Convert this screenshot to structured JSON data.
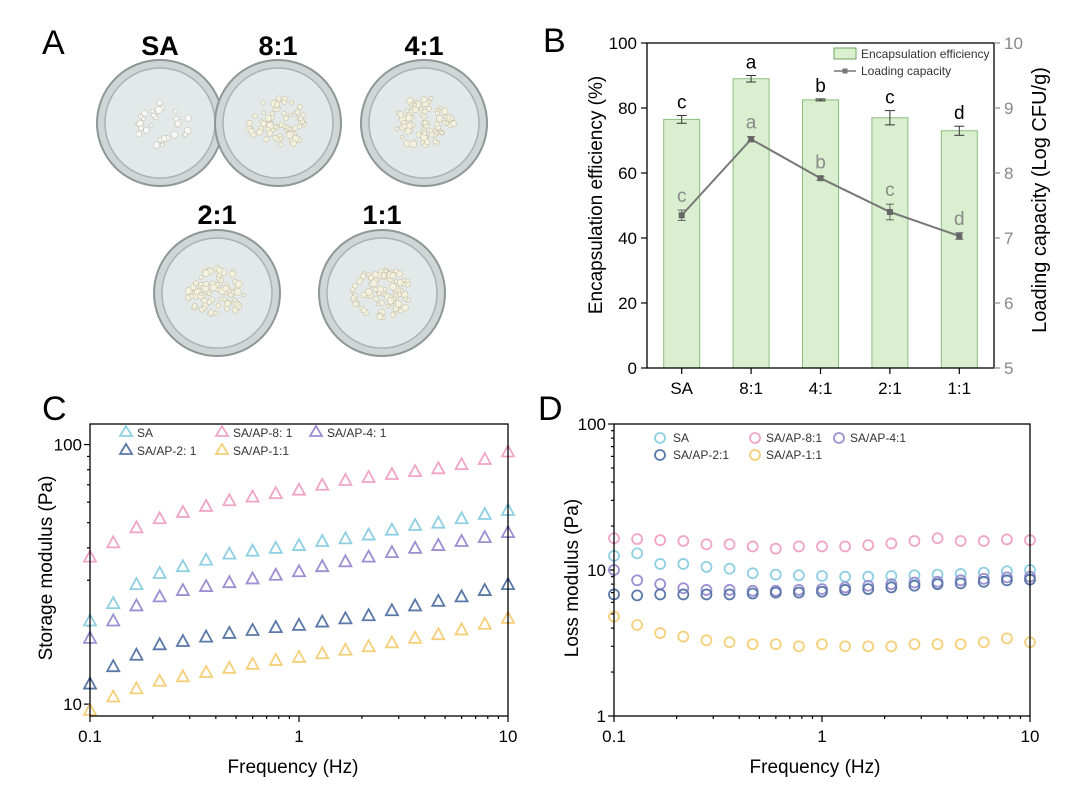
{
  "panels": {
    "A": {
      "letter": "A",
      "dishes": [
        {
          "label": "SA",
          "density": 0.35
        },
        {
          "label": "8:1",
          "density": 0.75
        },
        {
          "label": "4:1",
          "density": 0.9
        },
        {
          "label": "2:1",
          "density": 0.85
        },
        {
          "label": "1:1",
          "density": 0.95
        }
      ]
    }
  },
  "chart_data": [
    {
      "id": "B",
      "letter": "B",
      "type": "bar",
      "categories": [
        "SA",
        "8:1",
        "4:1",
        "2:1",
        "1:1"
      ],
      "series": [
        {
          "name": "Encapsulation efficiency",
          "axis": "left",
          "kind": "bar",
          "values": [
            76.5,
            89,
            82.5,
            77,
            73
          ],
          "errors": [
            1.2,
            1.0,
            0.3,
            2.2,
            1.4
          ],
          "letters": [
            "c",
            "a",
            "b",
            "c",
            "d"
          ],
          "color": "#d9efcf",
          "edge": "#8bbf7d"
        },
        {
          "name": "Loading capacity",
          "axis": "right",
          "kind": "line",
          "values": [
            7.35,
            8.52,
            7.92,
            7.4,
            7.03
          ],
          "errors": [
            0.08,
            0.04,
            0.03,
            0.12,
            0.05
          ],
          "letters": [
            "c",
            "a",
            "b",
            "c",
            "d"
          ],
          "color": "#777777"
        }
      ],
      "ylabel": "Encapsulation efficiency (%)",
      "y2label": "Loading capacity (Log CFU/g)",
      "ylim": [
        0,
        100
      ],
      "yticks": [
        0,
        20,
        40,
        60,
        80,
        100
      ],
      "y2lim": [
        5,
        10
      ],
      "y2ticks": [
        5,
        6,
        7,
        8,
        9,
        10
      ],
      "legend": [
        "Encapsulation efficiency",
        "Loading capacity"
      ],
      "legend_position": "top-right"
    },
    {
      "id": "C",
      "letter": "C",
      "type": "scatter",
      "marker": "triangle",
      "xscale": "log",
      "yscale": "log",
      "xlabel": "Frequency (Hz)",
      "ylabel": "Storage modulus (Pa)",
      "xlim": [
        0.1,
        10
      ],
      "ylim": [
        9,
        120
      ],
      "xticks": [
        0.1,
        1,
        10
      ],
      "xtick_labels": [
        "0.1",
        "1",
        "10"
      ],
      "yticks": [
        10,
        100
      ],
      "ytick_labels": [
        "10",
        "100"
      ],
      "x": [
        0.1,
        0.1292,
        0.1668,
        0.2154,
        0.2783,
        0.3594,
        0.4642,
        0.5995,
        0.7743,
        1.0,
        1.2915,
        1.6681,
        2.1544,
        2.7826,
        3.5938,
        4.6416,
        5.9948,
        7.7426,
        10.0
      ],
      "series": [
        {
          "name": "SA",
          "color": "#8fcfe3",
          "values": [
            21,
            24.5,
            29,
            32,
            34,
            36,
            38,
            39,
            40,
            41,
            42.5,
            43.5,
            45,
            47,
            49,
            50,
            52,
            54,
            56
          ]
        },
        {
          "name": "SA/AP-8: 1",
          "color": "#f0a6c3",
          "values": [
            37,
            42,
            48,
            52,
            55,
            58,
            61,
            63,
            65,
            67,
            70,
            73,
            75,
            77,
            79,
            81,
            84,
            88,
            94
          ]
        },
        {
          "name": "SA/AP-4: 1",
          "color": "#9c8fd2",
          "values": [
            18,
            21,
            24,
            26,
            27.5,
            28.5,
            29.5,
            30.5,
            31.5,
            32.5,
            34,
            35.5,
            37,
            38.5,
            40,
            41,
            42.5,
            44,
            46
          ]
        },
        {
          "name": "SA/AP-2: 1",
          "color": "#5a78a8",
          "values": [
            12,
            14,
            15.5,
            17,
            17.5,
            18.2,
            18.8,
            19.3,
            19.8,
            20.2,
            20.8,
            21.4,
            22,
            23,
            24,
            25,
            26,
            27.5,
            29
          ]
        },
        {
          "name": "SA/AP-1:1",
          "color": "#f5cf7a",
          "values": [
            9.5,
            10.7,
            11.5,
            12.3,
            12.8,
            13.3,
            13.8,
            14.3,
            14.8,
            15.2,
            15.7,
            16.2,
            16.7,
            17.3,
            18,
            18.6,
            19.4,
            20.4,
            21.5
          ]
        }
      ],
      "legend_position": "top-left"
    },
    {
      "id": "D",
      "letter": "D",
      "type": "scatter",
      "marker": "circle",
      "xscale": "log",
      "yscale": "log",
      "xlabel": "Frequency (Hz)",
      "ylabel": "Loss modulus (Pa)",
      "xlim": [
        0.1,
        10
      ],
      "ylim": [
        1,
        100
      ],
      "xticks": [
        0.1,
        1,
        10
      ],
      "xtick_labels": [
        "0.1",
        "1",
        "10"
      ],
      "yticks": [
        1,
        10,
        100
      ],
      "ytick_labels": [
        "1",
        "10",
        "100"
      ],
      "x": [
        0.1,
        0.1292,
        0.1668,
        0.2154,
        0.2783,
        0.3594,
        0.4642,
        0.5995,
        0.7743,
        1.0,
        1.2915,
        1.6681,
        2.1544,
        2.7826,
        3.5938,
        4.6416,
        5.9948,
        7.7426,
        10.0
      ],
      "series": [
        {
          "name": "SA",
          "color": "#8fcfe3",
          "values": [
            12.5,
            13,
            11,
            11,
            10.5,
            10.2,
            9.5,
            9.3,
            9.2,
            9.1,
            9.0,
            9.0,
            9.1,
            9.2,
            9.3,
            9.4,
            9.6,
            9.8,
            10
          ]
        },
        {
          "name": "SA/AP-8:1",
          "color": "#f0a6c3",
          "values": [
            16.5,
            16.3,
            16,
            15.8,
            15,
            15,
            14.5,
            14,
            14.5,
            14.5,
            14.5,
            14.8,
            15.2,
            15.8,
            16.5,
            15.8,
            15.8,
            16.2,
            16
          ]
        },
        {
          "name": "SA/AP-4:1",
          "color": "#9c8fd2",
          "values": [
            10,
            8.5,
            8,
            7.5,
            7.3,
            7.3,
            7.2,
            7.2,
            7.3,
            7.4,
            7.6,
            7.8,
            8,
            8.2,
            8.3,
            8.5,
            8.7,
            8.9,
            9
          ]
        },
        {
          "name": "SA/AP-2:1",
          "color": "#5a78a8",
          "values": [
            6.8,
            6.7,
            6.8,
            6.8,
            6.8,
            6.8,
            6.9,
            7.0,
            7.0,
            7.1,
            7.3,
            7.4,
            7.6,
            7.8,
            8.0,
            8.1,
            8.3,
            8.5,
            8.6
          ]
        },
        {
          "name": "SA/AP-1:1",
          "color": "#f5cf7a",
          "values": [
            4.8,
            4.2,
            3.7,
            3.5,
            3.3,
            3.2,
            3.1,
            3.1,
            3.0,
            3.1,
            3.0,
            3.0,
            3.0,
            3.1,
            3.1,
            3.1,
            3.2,
            3.4,
            3.2
          ]
        }
      ],
      "legend_position": "top-left"
    }
  ]
}
